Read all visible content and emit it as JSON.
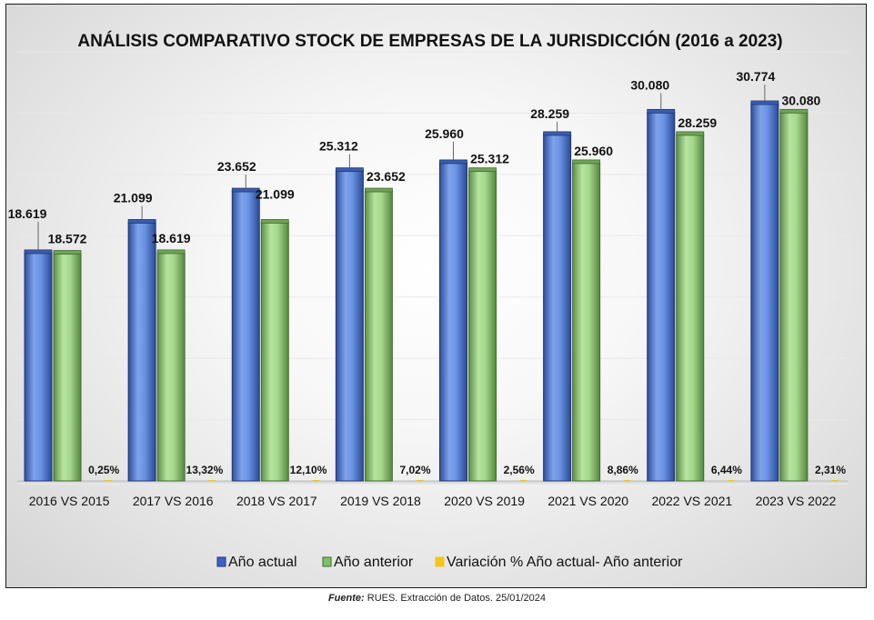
{
  "chart_data": {
    "type": "bar",
    "title": "ANÁLISIS COMPARATIVO STOCK DE EMPRESAS DE LA JURISDICCIÓN (2016 a 2023)",
    "categories": [
      "2016 VS 2015",
      "2017 VS 2016",
      "2018 VS 2017",
      "2019 VS 2018",
      "2020 VS 2019",
      "2021 VS 2020",
      "2022 VS 2021",
      "2023 VS 2022"
    ],
    "series": [
      {
        "name": "Año actual",
        "values": [
          18619,
          21099,
          23652,
          25312,
          25960,
          28259,
          30080,
          30774
        ],
        "labels": [
          "18.619",
          "21.099",
          "23.652",
          "25.312",
          "25.960",
          "28.259",
          "30.080",
          "30.774"
        ],
        "color": "#5b86d6"
      },
      {
        "name": "Año anterior",
        "values": [
          18572,
          18619,
          21099,
          23652,
          25312,
          25960,
          28259,
          30080
        ],
        "labels": [
          "18.572",
          "18.619",
          "21.099",
          "23.652",
          "25.312",
          "25.960",
          "28.259",
          "30.080"
        ],
        "color": "#93cc7c"
      },
      {
        "name": "Variación % Año actual- Año anterior",
        "values": [
          0.25,
          13.32,
          12.1,
          7.02,
          2.56,
          8.86,
          6.44,
          2.31
        ],
        "labels": [
          "0,25%",
          "13,32%",
          "12,10%",
          "7,02%",
          "2,56%",
          "8,86%",
          "6,44%",
          "2,31%"
        ],
        "color": "#f5c518"
      }
    ],
    "ylim": [
      0,
      35000
    ],
    "grid": true,
    "legend_position": "bottom",
    "xlabel": "",
    "ylabel": ""
  },
  "source": {
    "label": "Fuente:",
    "text": " RUES. Extracción de Datos. 25/01/2024"
  }
}
